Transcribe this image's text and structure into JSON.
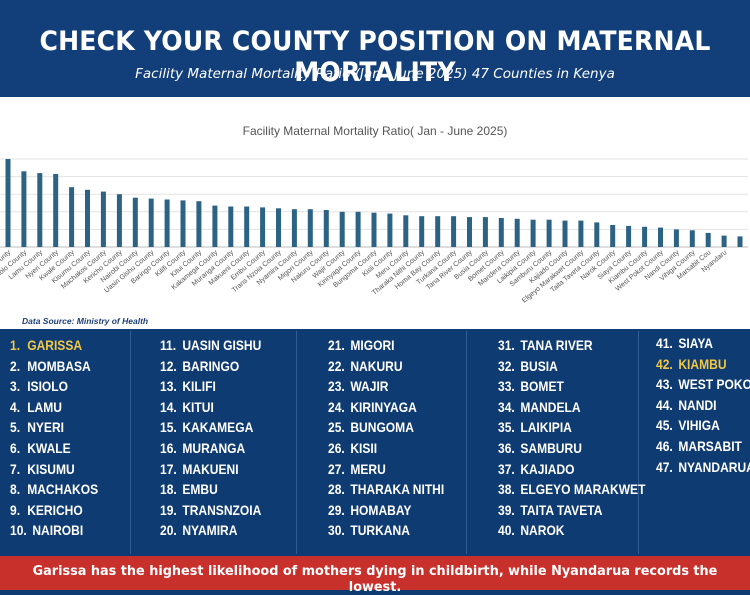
{
  "header": {
    "title": "CHECK YOUR COUNTY POSITION ON MATERNAL MORTALITY",
    "subtitle": "Facility Maternal Mortality Ratio (Jan - June 2025) 47 Counties in Kenya"
  },
  "chart_data": {
    "type": "bar",
    "title": "Facility Maternal Mortality Ratio( Jan - June 2025)",
    "xlabel": "",
    "ylabel": "",
    "grid": true,
    "legend": "none",
    "bar_color": "#2c6283",
    "categories": [
      "Garissa County",
      "Mombasa County",
      "Isiolo County",
      "Lamu County",
      "Nyeri County",
      "Kwale County",
      "Kisumu County",
      "Machakos County",
      "Kericho County",
      "Nairobi County",
      "Uasin Gishu County",
      "Baringo County",
      "Kilifi County",
      "Kitui County",
      "Kakamega County",
      "Muranga County",
      "Makueni County",
      "Embu County",
      "Trans Nzoia County",
      "Nyamira County",
      "Migori County",
      "Nakuru County",
      "Wajir County",
      "Kirinyaga County",
      "Bungoma County",
      "Kisii County",
      "Meru County",
      "Tharaka Nithi County",
      "Homa Bay County",
      "Turkana County",
      "Tana River County",
      "Busia County",
      "Bomet County",
      "Mandera County",
      "Laikipia County",
      "Samburu County",
      "Kajiado County",
      "Elgeyo Marakwet County",
      "Taita Taveta County",
      "Narok County",
      "Siaya County",
      "Kiambu County",
      "West Pokot County",
      "Nandi County",
      "Vihiga County",
      "Marsabit County",
      "Nyandarua County"
    ],
    "visible_labels": [
      "a County",
      "Isiolo County",
      "Lamu County",
      "Nyeri County",
      "Kwale County",
      "Kisumu County",
      "Machakos County",
      "Kericho County",
      "Nairobi County",
      "Uasin Gishu County",
      "Baringo County",
      "Kilifi County",
      "Kitui County",
      "Kakamega County",
      "Muranga County",
      "Makueni County",
      "Embu County",
      "Trans Nzoia County",
      "Nyamira County",
      "Migori County",
      "Nakuru County",
      "Wajir County",
      "Kirinyaga County",
      "Bungoma County",
      "Kisii County",
      "Meru County",
      "Tharaka Nithi County",
      "Homa Bay County",
      "Turkana County",
      "Tana River County",
      "Busia County",
      "Bomet County",
      "Mandera County",
      "Laikipia County",
      "Samburu County",
      "Kajiado County",
      "Elgeyo Marakwet County",
      "Taita Taveta County",
      "Narok County",
      "Siaya County",
      "Kiambu County",
      "West Pokot County",
      "Nandi County",
      "Vihiga County",
      "Marsabit Cou",
      "Nyandaru"
    ],
    "values": [
      100,
      86,
      84,
      83,
      68,
      65,
      63,
      60,
      56,
      55,
      54,
      53,
      52,
      47,
      46,
      46,
      45,
      44,
      43,
      43,
      42,
      40,
      40,
      39,
      38,
      36,
      35,
      35,
      35,
      34,
      34,
      33,
      32,
      31,
      31,
      30,
      30,
      28,
      25,
      24,
      23,
      22,
      20,
      19,
      16,
      13,
      12
    ],
    "ylim": [
      0,
      100
    ]
  },
  "source_note": "Data Source: Ministry of Health",
  "rankings": [
    [
      {
        "num": "1.",
        "name": "GARISSA",
        "hl": true
      },
      {
        "num": "2.",
        "name": "MOMBASA"
      },
      {
        "num": "3.",
        "name": "ISIOLO"
      },
      {
        "num": "4.",
        "name": "LAMU"
      },
      {
        "num": "5.",
        "name": "NYERI"
      },
      {
        "num": "6.",
        "name": "KWALE"
      },
      {
        "num": "7.",
        "name": "KISUMU"
      },
      {
        "num": "8.",
        "name": "MACHAKOS"
      },
      {
        "num": "9.",
        "name": "KERICHO"
      },
      {
        "num": "10.",
        "name": "NAIROBI"
      }
    ],
    [
      {
        "num": "11.",
        "name": "UASIN GISHU"
      },
      {
        "num": "12.",
        "name": "BARINGO"
      },
      {
        "num": "13.",
        "name": "KILIFI"
      },
      {
        "num": "14.",
        "name": "KITUI"
      },
      {
        "num": "15.",
        "name": "KAKAMEGA"
      },
      {
        "num": "16.",
        "name": "MURANGA"
      },
      {
        "num": "17.",
        "name": "MAKUENI"
      },
      {
        "num": "18.",
        "name": "EMBU"
      },
      {
        "num": "19.",
        "name": "TRANSNZOIA"
      },
      {
        "num": "20.",
        "name": "NYAMIRA"
      }
    ],
    [
      {
        "num": "21.",
        "name": "MIGORI"
      },
      {
        "num": "22.",
        "name": "NAKURU"
      },
      {
        "num": "23.",
        "name": "WAJIR"
      },
      {
        "num": "24.",
        "name": "KIRINYAGA"
      },
      {
        "num": "25.",
        "name": "BUNGOMA"
      },
      {
        "num": "26.",
        "name": "KISII"
      },
      {
        "num": "27.",
        "name": "MERU"
      },
      {
        "num": "28.",
        "name": "THARAKA NITHI"
      },
      {
        "num": "29.",
        "name": "HOMABAY"
      },
      {
        "num": "30.",
        "name": "TURKANA"
      }
    ],
    [
      {
        "num": "31.",
        "name": "TANA RIVER"
      },
      {
        "num": "32.",
        "name": "BUSIA"
      },
      {
        "num": "33.",
        "name": "BOMET"
      },
      {
        "num": "34.",
        "name": "MANDELA"
      },
      {
        "num": "35.",
        "name": "LAIKIPIA"
      },
      {
        "num": "36.",
        "name": "SAMBURU"
      },
      {
        "num": "37.",
        "name": "KAJIADO"
      },
      {
        "num": "38.",
        "name": "ELGEYO MARAKWET"
      },
      {
        "num": "39.",
        "name": "TAITA TAVETA"
      },
      {
        "num": "40.",
        "name": "NAROK"
      }
    ],
    [
      {
        "num": "41.",
        "name": "SIAYA"
      },
      {
        "num": "42.",
        "name": "KIAMBU",
        "hl": true
      },
      {
        "num": "43.",
        "name": "WEST POKOT"
      },
      {
        "num": "44.",
        "name": "NANDI"
      },
      {
        "num": "45.",
        "name": "VIHIGA"
      },
      {
        "num": "46.",
        "name": "MARSABIT"
      },
      {
        "num": "47.",
        "name": "NYANDARUA"
      }
    ]
  ],
  "footer": {
    "text": "Garissa has the highest likelihood of mothers dying in childbirth, while Nyandarua records the lowest."
  },
  "colors": {
    "header_bg": "#123f7a",
    "body_bg": "#0f3b73",
    "highlight": "#f2c744",
    "footer_bg": "#c8302b"
  }
}
